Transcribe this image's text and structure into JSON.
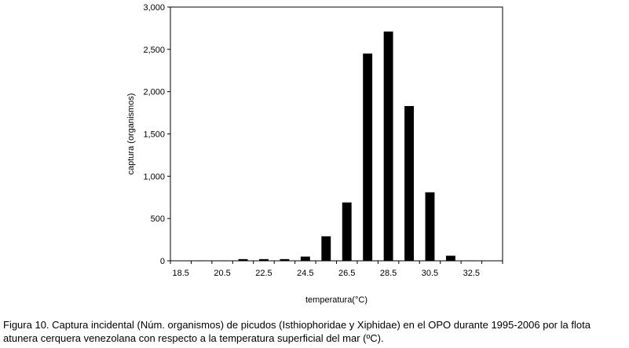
{
  "chart_data": {
    "type": "bar",
    "categories": [
      "18.5",
      "19.5",
      "20.5",
      "21.5",
      "22.5",
      "23.5",
      "24.5",
      "25.5",
      "26.5",
      "27.5",
      "28.5",
      "29.5",
      "30.5",
      "31.5",
      "32.5",
      "33.5"
    ],
    "values": [
      0,
      5,
      5,
      20,
      20,
      20,
      50,
      290,
      690,
      2450,
      2710,
      1830,
      810,
      60,
      5,
      0
    ],
    "tick_labels": [
      "18.5",
      "20.5",
      "22.5",
      "24.5",
      "26.5",
      "28.5",
      "30.5",
      "32.5"
    ],
    "y_tick_labels": [
      "0",
      "500",
      "1,000",
      "1,500",
      "2,000",
      "2,500",
      "3,000"
    ],
    "title": "",
    "xlabel": "temperatura(°C)",
    "ylabel": "captura (organismos)",
    "ylim": [
      0,
      3000
    ],
    "grid": false,
    "legend": "none",
    "bar_color": "#000000"
  },
  "caption": {
    "line1": "Figura 10. Captura incidental (Núm. organismos) de picudos (Isthiophoridae y Xiphidae) en el OPO durante 1995-2006 por la flota",
    "line2": "atunera cerquera venezolana con respecto a la temperatura superficial del mar (ºC)."
  }
}
